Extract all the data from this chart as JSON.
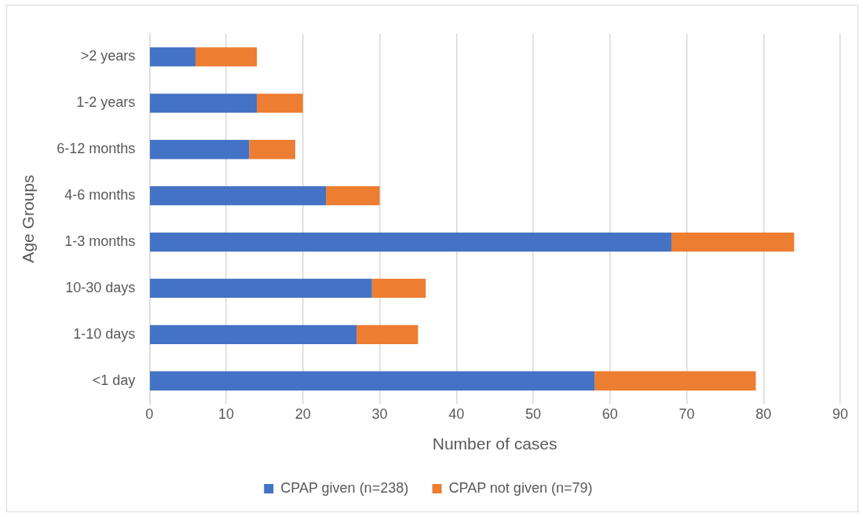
{
  "chart_data": {
    "type": "bar",
    "orientation": "horizontal",
    "stacked": true,
    "categories": [
      ">2 years",
      "1-2 years",
      "6-12 months",
      "4-6 months",
      "1-3 months",
      "10-30 days",
      "1-10 days",
      "<1 day"
    ],
    "series": [
      {
        "name": "CPAP given (n=238)",
        "color": "#4472c4",
        "values": [
          6,
          14,
          13,
          23,
          68,
          29,
          27,
          58
        ]
      },
      {
        "name": "CPAP not given (n=79)",
        "color": "#ed7d31",
        "values": [
          8,
          6,
          6,
          7,
          16,
          7,
          8,
          21
        ]
      }
    ],
    "xlabel": "Number of cases",
    "ylabel": "Age Groups",
    "xlim": [
      0,
      90
    ],
    "xticks": [
      0,
      10,
      20,
      30,
      40,
      50,
      60,
      70,
      80,
      90
    ],
    "grid": "x",
    "legend": "bottom"
  }
}
